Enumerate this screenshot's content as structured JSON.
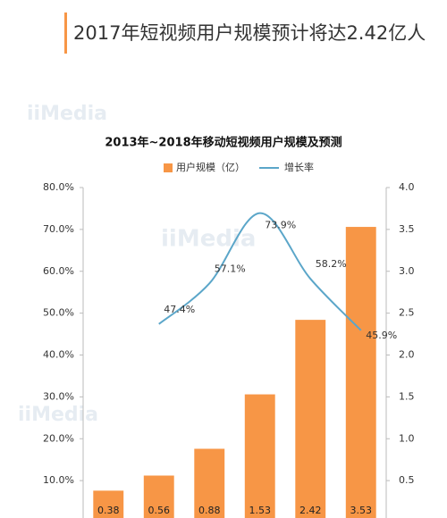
{
  "header": {
    "title": "2017年短视频用户规模预计将达2.42亿人"
  },
  "watermark": "iiMedia",
  "chart_data": {
    "type": "bar-line",
    "title": "2013年~2018年移动短视频用户规模及预测",
    "categories": [
      null,
      null,
      null,
      null,
      null,
      null
    ],
    "series": [
      {
        "name": "用户规模（亿）",
        "type": "bar",
        "axis": "y2",
        "color": "#f79646",
        "values": [
          0.38,
          0.56,
          0.88,
          1.53,
          2.42,
          3.53
        ]
      },
      {
        "name": "增长率",
        "type": "line",
        "axis": "y",
        "color": "#5ba6c9",
        "values": [
          null,
          47.4,
          57.1,
          73.9,
          58.2,
          45.9
        ],
        "value_labels": [
          null,
          "47.4%",
          "57.1%",
          "73.9%",
          "58.2%",
          "45.9%"
        ]
      }
    ],
    "ylim": [
      0,
      80
    ],
    "yticks": [
      {
        "value": 10,
        "label": "10.0%"
      },
      {
        "value": 20,
        "label": "20.0%"
      },
      {
        "value": 30,
        "label": "30.0%"
      },
      {
        "value": 40,
        "label": "40.0%"
      },
      {
        "value": 50,
        "label": "50.0%"
      },
      {
        "value": 60,
        "label": "60.0%"
      },
      {
        "value": 70,
        "label": "70.0%"
      },
      {
        "value": 80,
        "label": "80.0%"
      }
    ],
    "y2lim": [
      0,
      4
    ],
    "y2ticks": [
      0.5,
      {
        "value": 1,
        "label": "1.0"
      },
      1.5,
      {
        "value": 2,
        "label": "2.0"
      },
      2.5,
      {
        "value": 3,
        "label": "3.0"
      },
      3.5,
      {
        "value": 4,
        "label": "4.0"
      }
    ],
    "grid": false,
    "legend": "top"
  }
}
